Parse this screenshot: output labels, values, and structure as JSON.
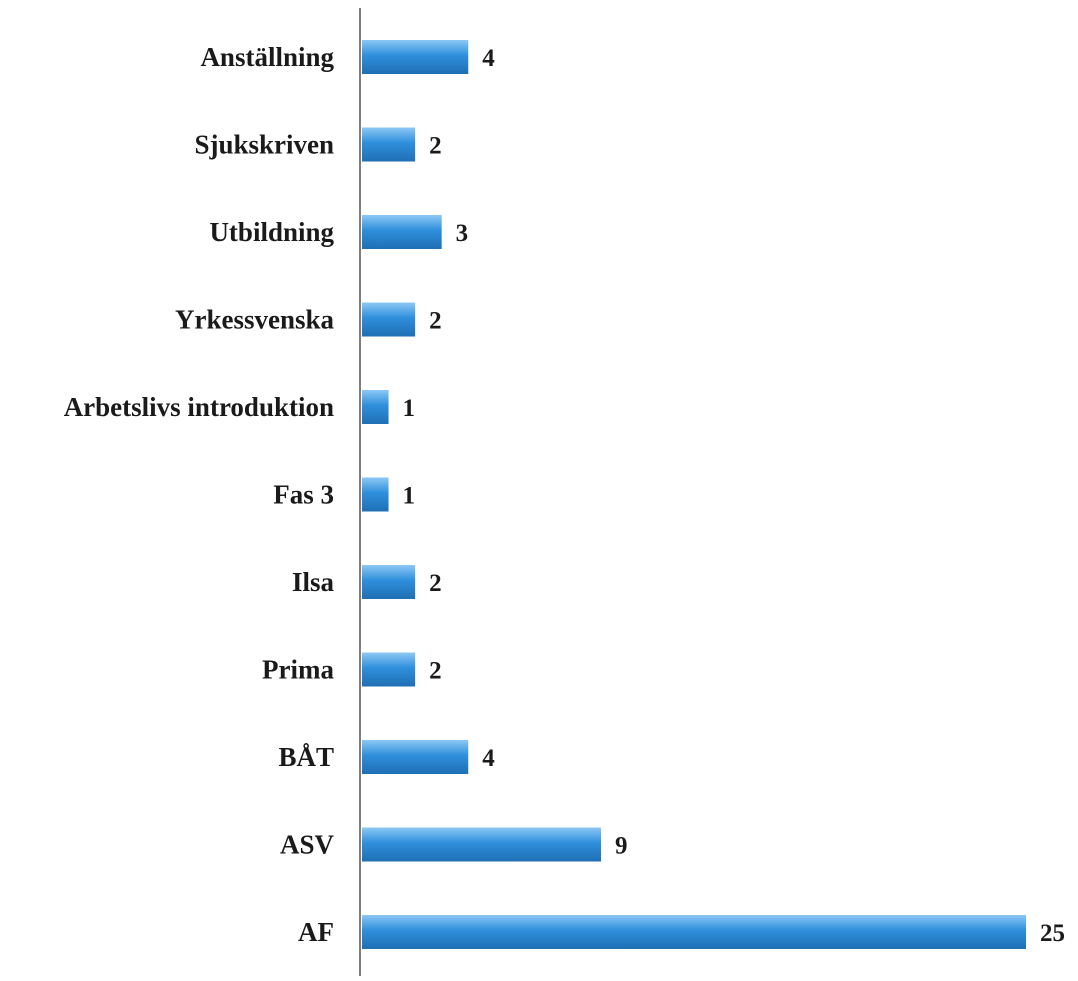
{
  "chart_data": {
    "type": "bar",
    "orientation": "horizontal",
    "categories": [
      "Anställning",
      "Sjukskriven",
      "Utbildning",
      "Yrkessvenska",
      "Arbetslivs introduktion",
      "Fas 3",
      "Ilsa",
      "Prima",
      "BÅT",
      "ASV",
      "AF"
    ],
    "values": [
      4,
      2,
      3,
      2,
      1,
      1,
      2,
      2,
      4,
      9,
      25
    ],
    "data_labels": [
      "4",
      "2",
      "3",
      "2",
      "1",
      "1",
      "2",
      "2",
      "4",
      "9",
      "25"
    ],
    "title": "",
    "xlabel": "",
    "ylabel": "",
    "xlim": [
      0,
      25
    ],
    "grid": false,
    "legend": "none",
    "colors": {
      "bar": "#2f8fdc",
      "bar_highlight": "#8cc8f4",
      "bar_shadow": "#1f6fb3",
      "axis": "#555555",
      "text": "#1a1a1a"
    }
  }
}
